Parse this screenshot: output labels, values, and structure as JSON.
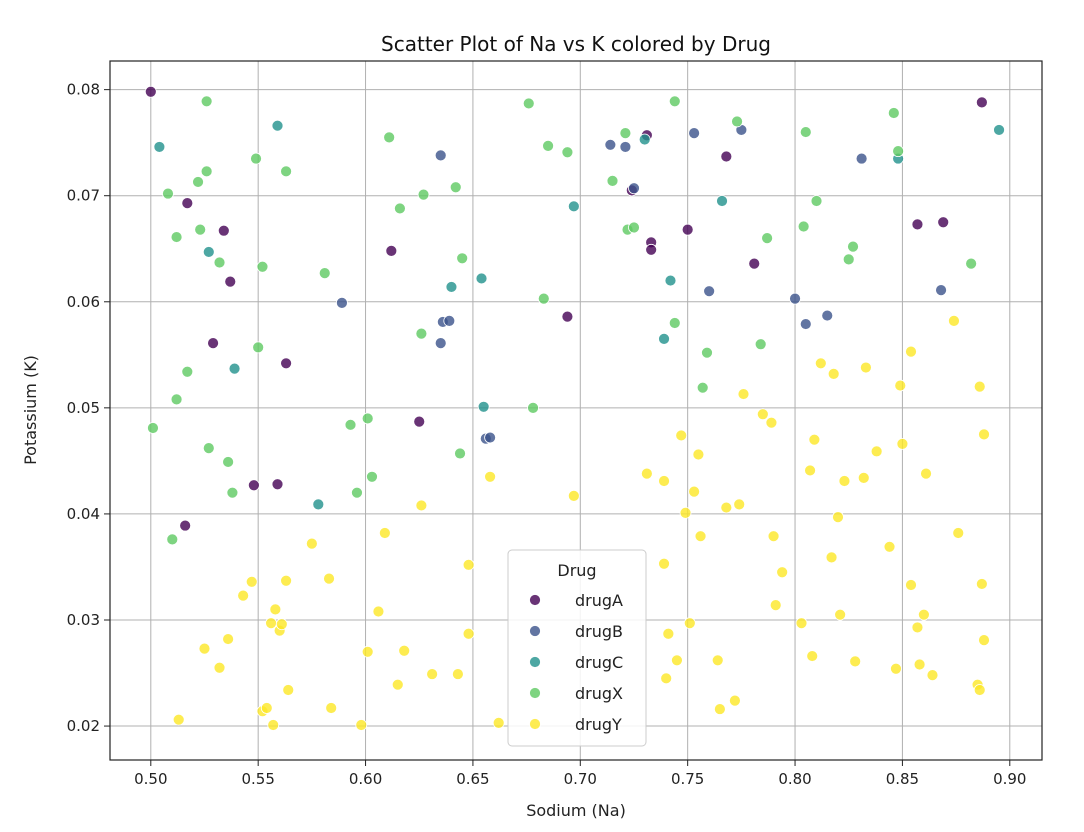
{
  "chart_data": {
    "type": "scatter",
    "title": "Scatter Plot of Na vs K colored by Drug",
    "xlabel": "Sodium (Na)",
    "ylabel": "Potassium (K)",
    "xlim": [
      0.481,
      0.915
    ],
    "ylim": [
      0.0168,
      0.0827
    ],
    "xticks": [
      0.5,
      0.55,
      0.6,
      0.65,
      0.7,
      0.75,
      0.8,
      0.85,
      0.9
    ],
    "xtick_labels": [
      "0.50",
      "0.55",
      "0.60",
      "0.65",
      "0.70",
      "0.75",
      "0.80",
      "0.85",
      "0.90"
    ],
    "yticks": [
      0.02,
      0.03,
      0.04,
      0.05,
      0.06,
      0.07,
      0.08
    ],
    "ytick_labels": [
      "0.02",
      "0.03",
      "0.04",
      "0.05",
      "0.06",
      "0.07",
      "0.08"
    ],
    "grid": true,
    "legend": {
      "title": "Drug",
      "position": "lower-center"
    },
    "series": [
      {
        "name": "drugA",
        "color": "#440154",
        "points": [
          [
            0.5,
            0.0798
          ],
          [
            0.517,
            0.0693
          ],
          [
            0.534,
            0.0667
          ],
          [
            0.537,
            0.0619
          ],
          [
            0.529,
            0.0561
          ],
          [
            0.563,
            0.0542
          ],
          [
            0.548,
            0.0427
          ],
          [
            0.559,
            0.0428
          ],
          [
            0.516,
            0.0389
          ],
          [
            0.612,
            0.0648
          ],
          [
            0.625,
            0.0487
          ],
          [
            0.694,
            0.0586
          ],
          [
            0.724,
            0.0705
          ],
          [
            0.731,
            0.0757
          ],
          [
            0.733,
            0.0656
          ],
          [
            0.733,
            0.0649
          ],
          [
            0.75,
            0.0668
          ],
          [
            0.768,
            0.0737
          ],
          [
            0.781,
            0.0636
          ],
          [
            0.857,
            0.0673
          ],
          [
            0.869,
            0.0675
          ],
          [
            0.887,
            0.0788
          ]
        ]
      },
      {
        "name": "drugB",
        "color": "#3b528b",
        "points": [
          [
            0.589,
            0.0599
          ],
          [
            0.635,
            0.0738
          ],
          [
            0.636,
            0.0581
          ],
          [
            0.639,
            0.0582
          ],
          [
            0.635,
            0.0561
          ],
          [
            0.656,
            0.0471
          ],
          [
            0.658,
            0.0472
          ],
          [
            0.714,
            0.0748
          ],
          [
            0.721,
            0.0746
          ],
          [
            0.725,
            0.0707
          ],
          [
            0.753,
            0.0759
          ],
          [
            0.76,
            0.061
          ],
          [
            0.775,
            0.0762
          ],
          [
            0.8,
            0.0603
          ],
          [
            0.805,
            0.0579
          ],
          [
            0.815,
            0.0587
          ],
          [
            0.831,
            0.0735
          ],
          [
            0.868,
            0.0611
          ]
        ]
      },
      {
        "name": "drugC",
        "color": "#21918c",
        "points": [
          [
            0.504,
            0.0746
          ],
          [
            0.559,
            0.0766
          ],
          [
            0.527,
            0.0647
          ],
          [
            0.539,
            0.0537
          ],
          [
            0.578,
            0.0409
          ],
          [
            0.64,
            0.0614
          ],
          [
            0.654,
            0.0622
          ],
          [
            0.655,
            0.0501
          ],
          [
            0.697,
            0.069
          ],
          [
            0.73,
            0.0753
          ],
          [
            0.739,
            0.0565
          ],
          [
            0.742,
            0.062
          ],
          [
            0.766,
            0.0695
          ],
          [
            0.848,
            0.0735
          ],
          [
            0.895,
            0.0762
          ]
        ]
      },
      {
        "name": "drugX",
        "color": "#5ec962",
        "points": [
          [
            0.501,
            0.0481
          ],
          [
            0.508,
            0.0702
          ],
          [
            0.51,
            0.0376
          ],
          [
            0.512,
            0.0661
          ],
          [
            0.512,
            0.0508
          ],
          [
            0.517,
            0.0534
          ],
          [
            0.522,
            0.0713
          ],
          [
            0.523,
            0.0668
          ],
          [
            0.526,
            0.0723
          ],
          [
            0.526,
            0.0789
          ],
          [
            0.527,
            0.0462
          ],
          [
            0.532,
            0.0637
          ],
          [
            0.536,
            0.0449
          ],
          [
            0.538,
            0.042
          ],
          [
            0.549,
            0.0735
          ],
          [
            0.55,
            0.0557
          ],
          [
            0.552,
            0.0633
          ],
          [
            0.563,
            0.0723
          ],
          [
            0.581,
            0.0627
          ],
          [
            0.593,
            0.0484
          ],
          [
            0.596,
            0.042
          ],
          [
            0.601,
            0.049
          ],
          [
            0.603,
            0.0435
          ],
          [
            0.611,
            0.0755
          ],
          [
            0.616,
            0.0688
          ],
          [
            0.626,
            0.057
          ],
          [
            0.627,
            0.0701
          ],
          [
            0.642,
            0.0708
          ],
          [
            0.645,
            0.0641
          ],
          [
            0.644,
            0.0457
          ],
          [
            0.676,
            0.0787
          ],
          [
            0.678,
            0.05
          ],
          [
            0.683,
            0.0603
          ],
          [
            0.685,
            0.0747
          ],
          [
            0.694,
            0.0741
          ],
          [
            0.715,
            0.0714
          ],
          [
            0.721,
            0.0759
          ],
          [
            0.722,
            0.0668
          ],
          [
            0.725,
            0.067
          ],
          [
            0.744,
            0.0789
          ],
          [
            0.744,
            0.058
          ],
          [
            0.759,
            0.0552
          ],
          [
            0.757,
            0.0519
          ],
          [
            0.773,
            0.077
          ],
          [
            0.784,
            0.056
          ],
          [
            0.787,
            0.066
          ],
          [
            0.804,
            0.0671
          ],
          [
            0.805,
            0.076
          ],
          [
            0.81,
            0.0695
          ],
          [
            0.825,
            0.064
          ],
          [
            0.827,
            0.0652
          ],
          [
            0.846,
            0.0778
          ],
          [
            0.848,
            0.0742
          ],
          [
            0.882,
            0.0636
          ]
        ]
      },
      {
        "name": "drugY",
        "color": "#fde725",
        "points": [
          [
            0.513,
            0.0206
          ],
          [
            0.525,
            0.0273
          ],
          [
            0.532,
            0.0255
          ],
          [
            0.536,
            0.0282
          ],
          [
            0.543,
            0.0323
          ],
          [
            0.547,
            0.0336
          ],
          [
            0.552,
            0.0214
          ],
          [
            0.554,
            0.0217
          ],
          [
            0.556,
            0.0297
          ],
          [
            0.557,
            0.0201
          ],
          [
            0.558,
            0.031
          ],
          [
            0.56,
            0.029
          ],
          [
            0.561,
            0.0296
          ],
          [
            0.563,
            0.0337
          ],
          [
            0.564,
            0.0234
          ],
          [
            0.575,
            0.0372
          ],
          [
            0.583,
            0.0339
          ],
          [
            0.584,
            0.0217
          ],
          [
            0.598,
            0.0201
          ],
          [
            0.601,
            0.027
          ],
          [
            0.606,
            0.0308
          ],
          [
            0.609,
            0.0382
          ],
          [
            0.615,
            0.0239
          ],
          [
            0.618,
            0.0271
          ],
          [
            0.626,
            0.0408
          ],
          [
            0.631,
            0.0249
          ],
          [
            0.643,
            0.0249
          ],
          [
            0.648,
            0.0352
          ],
          [
            0.648,
            0.0287
          ],
          [
            0.658,
            0.0435
          ],
          [
            0.662,
            0.0203
          ],
          [
            0.697,
            0.0417
          ],
          [
            0.731,
            0.0438
          ],
          [
            0.739,
            0.0431
          ],
          [
            0.739,
            0.0353
          ],
          [
            0.74,
            0.0245
          ],
          [
            0.741,
            0.0287
          ],
          [
            0.745,
            0.0262
          ],
          [
            0.747,
            0.0474
          ],
          [
            0.749,
            0.0401
          ],
          [
            0.751,
            0.0297
          ],
          [
            0.753,
            0.0421
          ],
          [
            0.755,
            0.0456
          ],
          [
            0.756,
            0.0379
          ],
          [
            0.764,
            0.0262
          ],
          [
            0.765,
            0.0216
          ],
          [
            0.768,
            0.0406
          ],
          [
            0.772,
            0.0224
          ],
          [
            0.774,
            0.0409
          ],
          [
            0.776,
            0.0513
          ],
          [
            0.785,
            0.0494
          ],
          [
            0.789,
            0.0486
          ],
          [
            0.79,
            0.0379
          ],
          [
            0.791,
            0.0314
          ],
          [
            0.794,
            0.0345
          ],
          [
            0.803,
            0.0297
          ],
          [
            0.807,
            0.0441
          ],
          [
            0.808,
            0.0266
          ],
          [
            0.809,
            0.047
          ],
          [
            0.812,
            0.0542
          ],
          [
            0.817,
            0.0359
          ],
          [
            0.818,
            0.0532
          ],
          [
            0.82,
            0.0397
          ],
          [
            0.821,
            0.0305
          ],
          [
            0.823,
            0.0431
          ],
          [
            0.828,
            0.0261
          ],
          [
            0.832,
            0.0434
          ],
          [
            0.833,
            0.0538
          ],
          [
            0.838,
            0.0459
          ],
          [
            0.844,
            0.0369
          ],
          [
            0.847,
            0.0254
          ],
          [
            0.849,
            0.0521
          ],
          [
            0.85,
            0.0466
          ],
          [
            0.854,
            0.0553
          ],
          [
            0.854,
            0.0333
          ],
          [
            0.857,
            0.0293
          ],
          [
            0.858,
            0.0258
          ],
          [
            0.86,
            0.0305
          ],
          [
            0.861,
            0.0438
          ],
          [
            0.864,
            0.0248
          ],
          [
            0.874,
            0.0582
          ],
          [
            0.876,
            0.0382
          ],
          [
            0.885,
            0.0239
          ],
          [
            0.886,
            0.052
          ],
          [
            0.886,
            0.0234
          ],
          [
            0.887,
            0.0334
          ],
          [
            0.888,
            0.0475
          ],
          [
            0.888,
            0.0281
          ]
        ]
      }
    ]
  }
}
